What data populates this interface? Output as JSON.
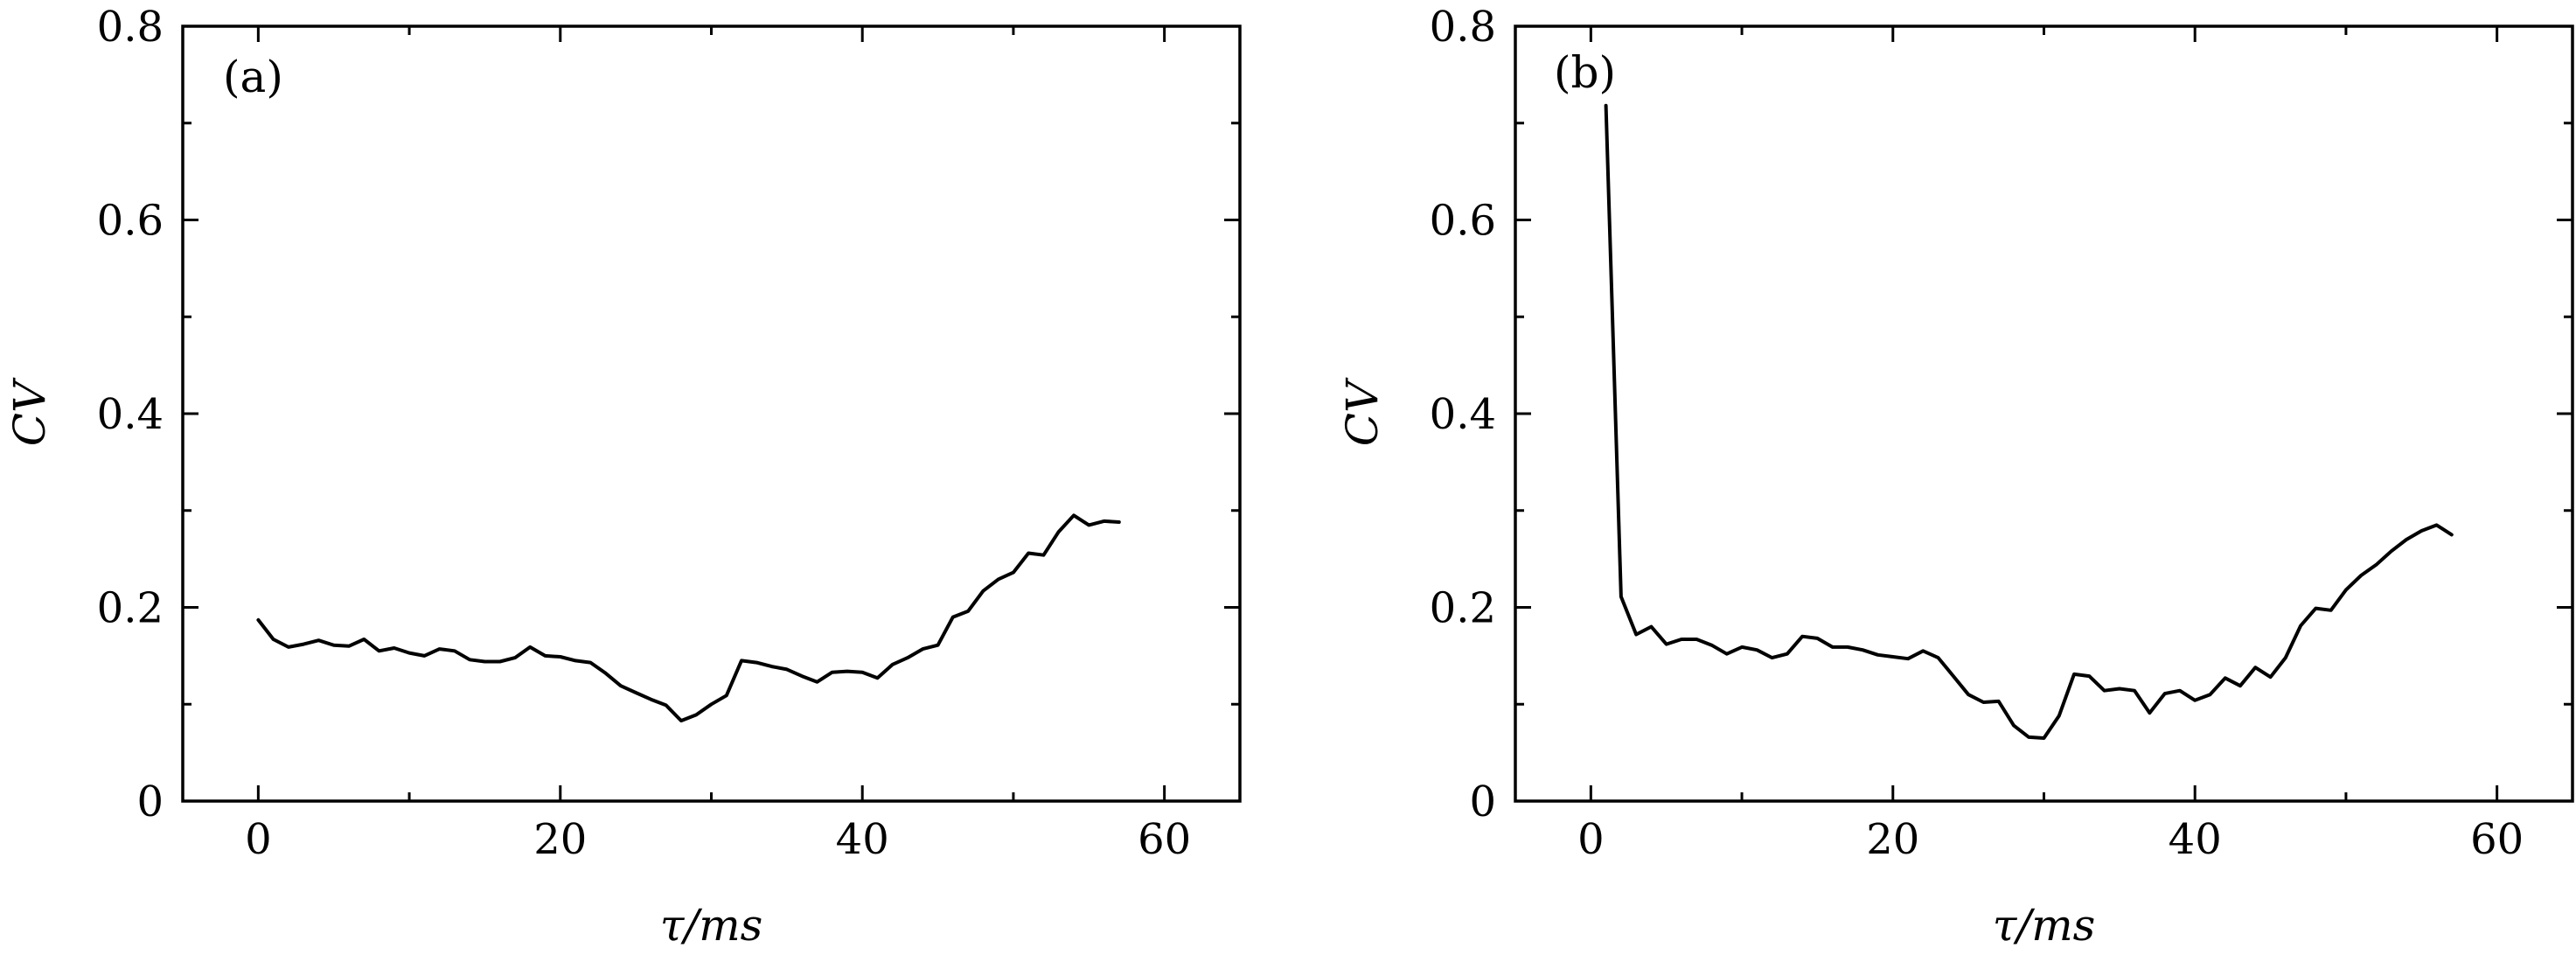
{
  "chart_data": [
    {
      "type": "line",
      "panel_label": "(a)",
      "xlabel": "τ/ms",
      "ylabel": "CV",
      "xlim": [
        -5,
        65
      ],
      "ylim": [
        0,
        0.8
      ],
      "xticks": [
        0,
        20,
        40,
        60
      ],
      "xtick_labels": [
        "0",
        "20",
        "40",
        "60"
      ],
      "yticks": [
        0,
        0.2,
        0.4,
        0.6,
        0.8
      ],
      "ytick_labels": [
        "0",
        "0.2",
        "0.4",
        "0.6",
        "0.8"
      ],
      "grid": false,
      "series": [
        {
          "color": "#000000",
          "x": [
            0,
            1,
            2,
            3,
            4,
            5,
            6,
            7,
            8,
            9,
            10,
            11,
            12,
            13,
            14,
            15,
            16,
            17,
            18,
            19,
            20,
            21,
            22,
            23,
            24,
            25,
            26,
            27,
            28,
            29,
            30,
            31,
            32,
            33,
            34,
            35,
            36,
            37,
            38,
            39,
            40,
            41,
            42,
            43,
            44,
            45,
            46,
            47,
            48,
            49,
            50,
            51,
            52,
            53,
            54,
            55,
            56,
            57
          ],
          "y": [
            0.187,
            0.167,
            0.159,
            0.162,
            0.166,
            0.161,
            0.16,
            0.167,
            0.155,
            0.158,
            0.153,
            0.15,
            0.157,
            0.155,
            0.146,
            0.144,
            0.144,
            0.148,
            0.159,
            0.15,
            0.149,
            0.145,
            0.143,
            0.132,
            0.119,
            0.112,
            0.105,
            0.099,
            0.083,
            0.089,
            0.1,
            0.109,
            0.145,
            0.143,
            0.139,
            0.136,
            0.129,
            0.123,
            0.133,
            0.134,
            0.133,
            0.127,
            0.141,
            0.148,
            0.157,
            0.161,
            0.19,
            0.196,
            0.217,
            0.229,
            0.236,
            0.256,
            0.254,
            0.278,
            0.295,
            0.285,
            0.289,
            0.288
          ]
        }
      ]
    },
    {
      "type": "line",
      "panel_label": "(b)",
      "xlabel": "τ/ms",
      "ylabel": "CV",
      "xlim": [
        -5,
        65
      ],
      "ylim": [
        0,
        0.8
      ],
      "xticks": [
        0,
        20,
        40,
        60
      ],
      "xtick_labels": [
        "0",
        "20",
        "40",
        "60"
      ],
      "yticks": [
        0,
        0.2,
        0.4,
        0.6,
        0.8
      ],
      "ytick_labels": [
        "0",
        "0.2",
        "0.4",
        "0.6",
        "0.8"
      ],
      "grid": false,
      "series": [
        {
          "color": "#000000",
          "x": [
            1,
            2,
            3,
            4,
            5,
            6,
            7,
            8,
            9,
            10,
            11,
            12,
            13,
            14,
            15,
            16,
            17,
            18,
            19,
            20,
            21,
            22,
            23,
            24,
            25,
            26,
            27,
            28,
            29,
            30,
            31,
            32,
            33,
            34,
            35,
            36,
            37,
            38,
            39,
            40,
            41,
            42,
            43,
            44,
            45,
            46,
            47,
            48,
            49,
            50,
            51,
            52,
            53,
            54,
            55,
            56,
            57
          ],
          "y": [
            0.718,
            0.211,
            0.172,
            0.18,
            0.162,
            0.167,
            0.167,
            0.161,
            0.152,
            0.159,
            0.156,
            0.148,
            0.152,
            0.17,
            0.168,
            0.159,
            0.159,
            0.156,
            0.151,
            0.149,
            0.147,
            0.155,
            0.148,
            0.129,
            0.11,
            0.102,
            0.103,
            0.078,
            0.066,
            0.065,
            0.088,
            0.131,
            0.129,
            0.114,
            0.116,
            0.114,
            0.091,
            0.111,
            0.114,
            0.104,
            0.11,
            0.127,
            0.119,
            0.138,
            0.128,
            0.148,
            0.181,
            0.199,
            0.197,
            0.218,
            0.233,
            0.244,
            0.258,
            0.27,
            0.279,
            0.285,
            0.275
          ]
        }
      ]
    }
  ]
}
